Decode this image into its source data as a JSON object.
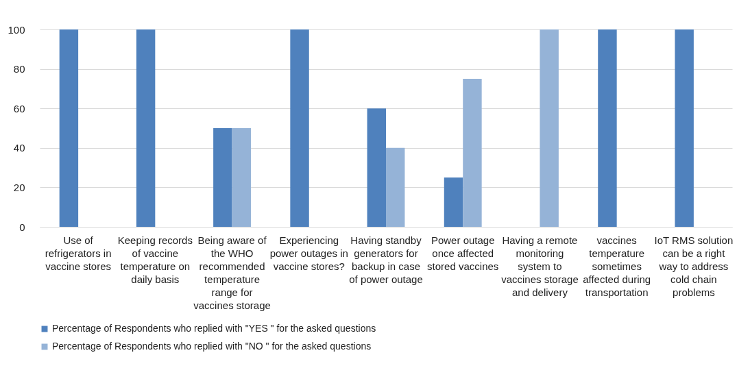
{
  "chart_data": {
    "type": "bar",
    "categories": [
      "Use of refrigerators in vaccine stores",
      "Keeping records of vaccine temperature on daily basis",
      "Being aware of the WHO recommended temperature range for vaccines storage",
      "Experiencing power outages in vaccine stores?",
      "Having standby generators for backup in case of power outage",
      "Power outage once affected stored vaccines",
      "Having a remote monitoring system to vaccines storage and delivery",
      "vaccines temperature sometimes affected during transportation",
      "IoT RMS solution can be a right way to address cold chain problems"
    ],
    "series": [
      {
        "name": "Percentage of Respondents who replied with \"YES \" for the asked questions",
        "color": "#4f81bd",
        "values": [
          100,
          100,
          50,
          100,
          60,
          25,
          0,
          100,
          100
        ]
      },
      {
        "name": "Percentage of Respondents who replied with \"NO \" for the asked questions",
        "color": "#95b3d7",
        "values": [
          0,
          0,
          50,
          0,
          40,
          75,
          100,
          0,
          0
        ]
      }
    ],
    "ylim": [
      0,
      100
    ],
    "yticks": [
      0,
      20,
      40,
      60,
      80,
      100
    ],
    "grid": "y",
    "legend": "bottom"
  }
}
